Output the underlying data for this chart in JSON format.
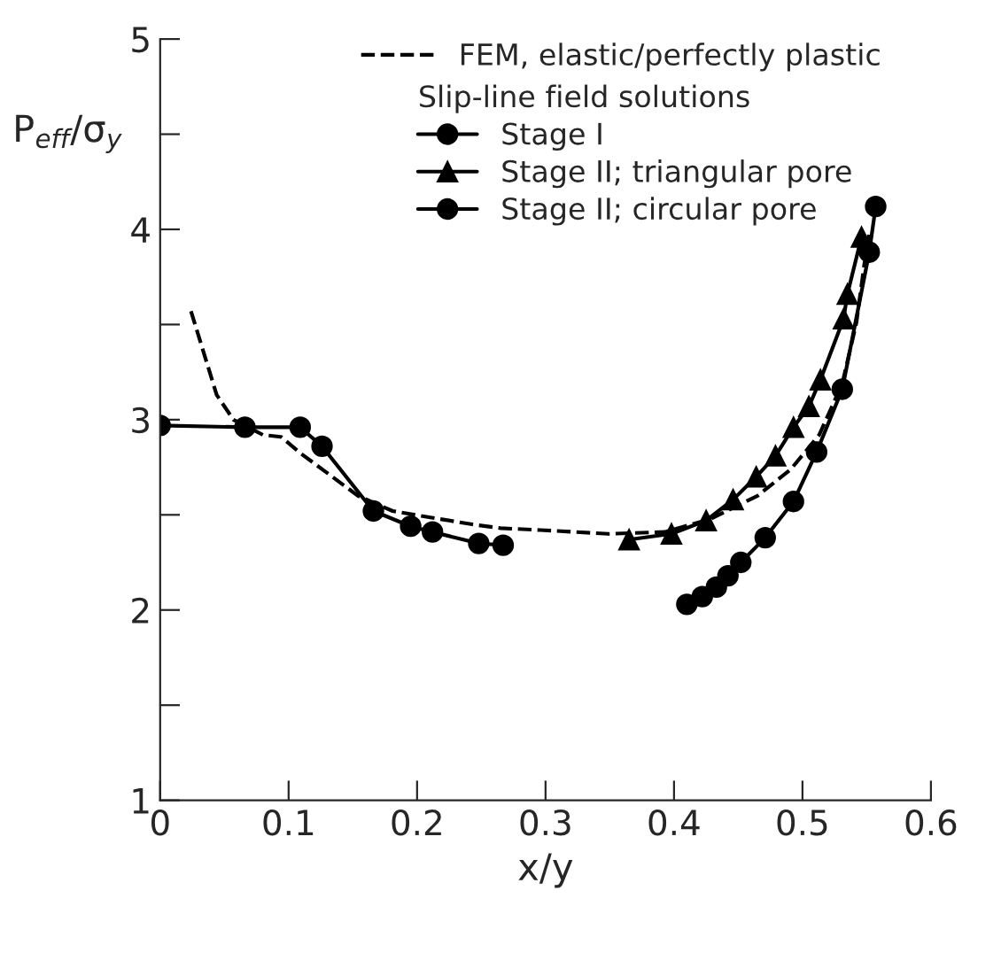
{
  "chart_data": {
    "type": "line",
    "xlabel": "x/y",
    "ylabel": "P$_{eff}$/σ$_{y}$",
    "legend_title": "Slip-line field solutions",
    "xlim": [
      0,
      0.6
    ],
    "ylim": [
      1,
      5
    ],
    "xticks": [
      0,
      0.1,
      0.2,
      0.3,
      0.4,
      0.5,
      0.6
    ],
    "yticks": [
      1,
      {
        "value": 1.5,
        "label": null
      },
      2,
      {
        "value": 2.5,
        "label": null
      },
      3,
      {
        "value": 3.5,
        "label": null
      },
      4,
      {
        "value": 4.5,
        "label": null
      },
      5
    ],
    "grid": false,
    "legend": "top right",
    "series": [
      {
        "name": "FEM, elastic/perfectly plastic",
        "color": "#000000",
        "line_style": "dashed",
        "marker": "none",
        "x": [
          0.024,
          0.044,
          0.057,
          0.08,
          0.094,
          0.11,
          0.128,
          0.154,
          0.181,
          0.216,
          0.243,
          0.265,
          0.296,
          0.349,
          0.393,
          0.429,
          0.465,
          0.491,
          0.513,
          0.531,
          0.542,
          0.548,
          0.552
        ],
        "values": [
          3.57,
          3.13,
          3.0,
          2.92,
          2.91,
          2.82,
          2.73,
          2.6,
          2.52,
          2.48,
          2.45,
          2.43,
          2.42,
          2.4,
          2.41,
          2.48,
          2.6,
          2.74,
          2.92,
          3.19,
          3.51,
          3.81,
          3.98
        ]
      },
      {
        "name": "Stage I",
        "color": "#000000",
        "line_style": "solid",
        "marker": "circle",
        "x": [
          0,
          0.066,
          0.109,
          0.126,
          0.166,
          0.195,
          0.212,
          0.248,
          0.267
        ],
        "values": [
          2.97,
          2.96,
          2.96,
          2.86,
          2.52,
          2.44,
          2.41,
          2.35,
          2.34
        ]
      },
      {
        "name": "Stage II; triangular pore",
        "color": "#000000",
        "line_style": "solid",
        "marker": "triangle",
        "x": [
          0.365,
          0.398,
          0.425,
          0.446,
          0.464,
          0.479,
          0.493,
          0.505,
          0.514,
          0.532,
          0.535,
          0.546
        ],
        "values": [
          2.37,
          2.4,
          2.47,
          2.58,
          2.7,
          2.81,
          2.96,
          3.07,
          3.21,
          3.53,
          3.66,
          3.96
        ]
      },
      {
        "name": "Stage II; circular pore",
        "color": "#000000",
        "line_style": "solid",
        "marker": "circle",
        "x": [
          0.41,
          0.422,
          0.433,
          0.442,
          0.452,
          0.471,
          0.493,
          0.511,
          0.531,
          0.552,
          0.557
        ],
        "values": [
          2.03,
          2.07,
          2.12,
          2.18,
          2.25,
          2.38,
          2.57,
          2.83,
          3.16,
          3.88,
          4.12
        ]
      }
    ]
  }
}
